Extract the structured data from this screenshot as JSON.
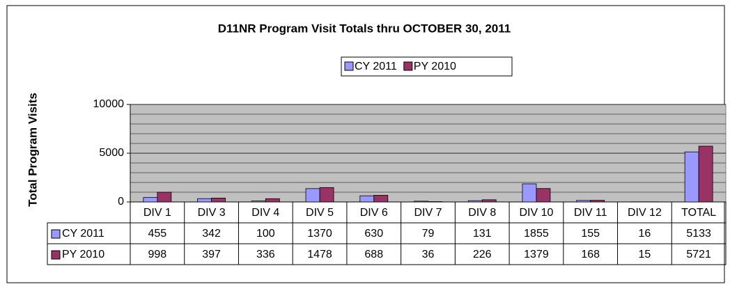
{
  "chart_data": {
    "type": "bar",
    "title": "D11NR Program Visit Totals thru OCTOBER 30, 2011",
    "y_label": "Total Program Visits",
    "categories": [
      "DIV 1",
      "DIV 3",
      "DIV 4",
      "DIV 5",
      "DIV 6",
      "DIV 7",
      "DIV 8",
      "DIV 10",
      "DIV 11",
      "DIV 12",
      "TOTAL"
    ],
    "series": [
      {
        "name": "CY 2011",
        "color": "#9999ff",
        "values": [
          455,
          342,
          100,
          1370,
          630,
          79,
          131,
          1855,
          155,
          16,
          5133
        ]
      },
      {
        "name": "PY 2010",
        "color": "#993366",
        "values": [
          998,
          397,
          336,
          1478,
          688,
          36,
          226,
          1379,
          168,
          15,
          5721
        ]
      }
    ],
    "ylim": [
      0,
      10000
    ],
    "yticks": [
      0,
      5000,
      10000
    ],
    "minor_yticks": [
      1000,
      2000,
      3000,
      4000,
      6000,
      7000,
      8000,
      9000
    ],
    "grid": true,
    "legend": "top",
    "data_table": true
  }
}
